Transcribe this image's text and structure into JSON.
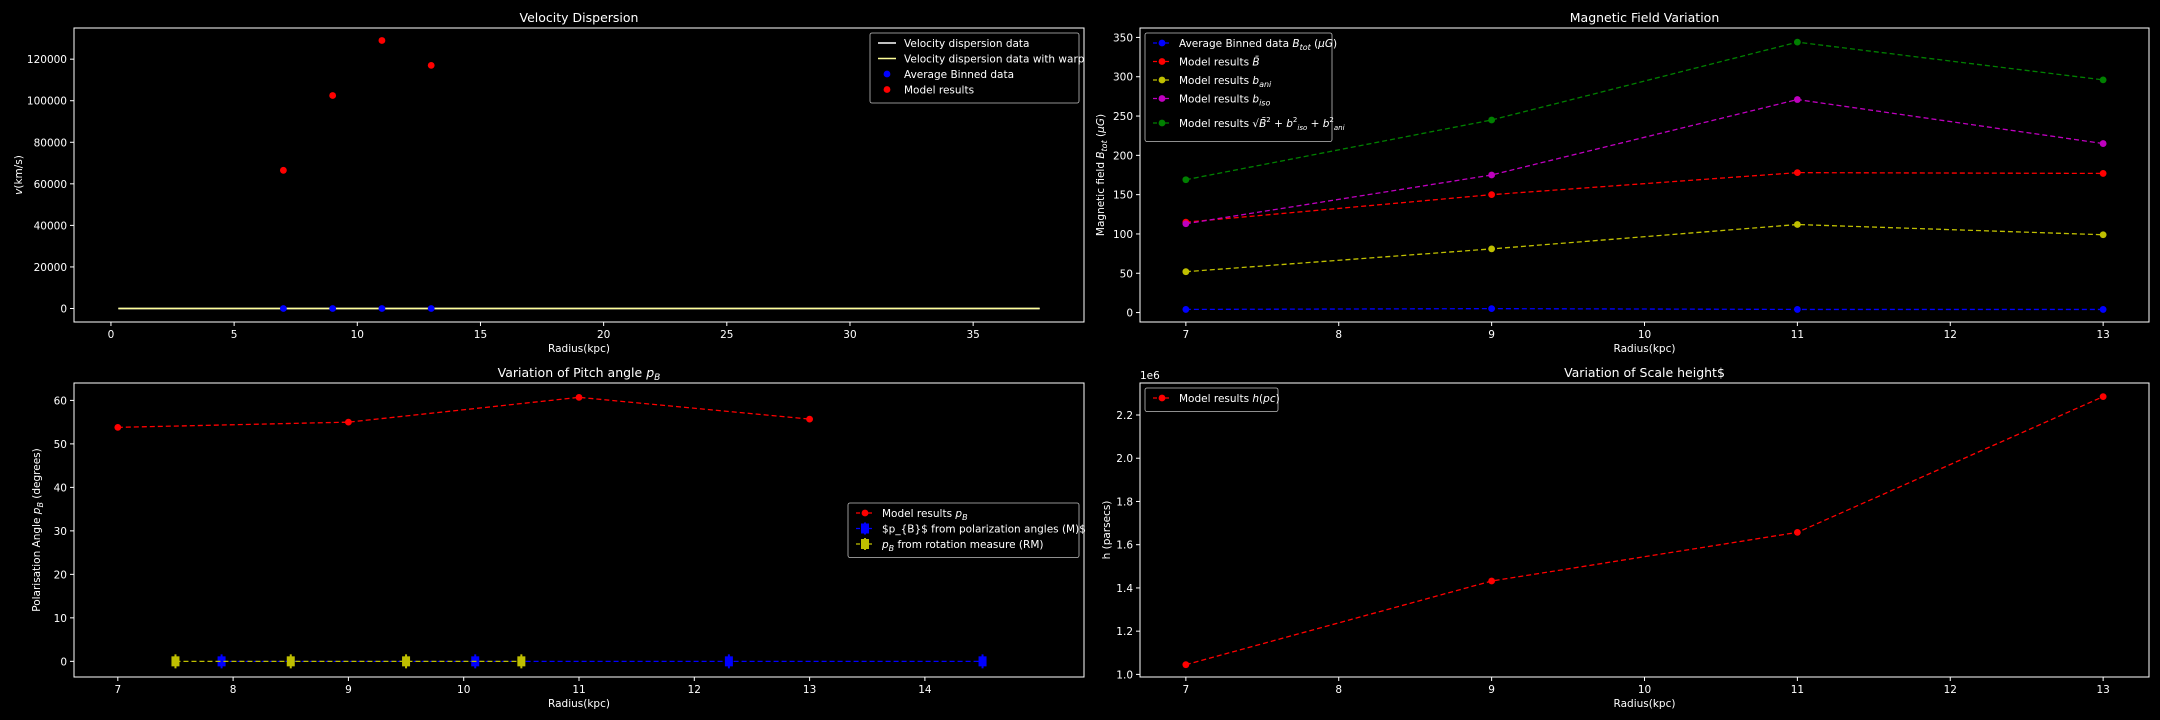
{
  "figure": {
    "background": "#000000",
    "foreground": "#ffffff"
  },
  "chart_data": [
    {
      "id": "vel",
      "type": "scatter",
      "title": "Velocity Dispersion",
      "xlabel": "Radius(kpc)",
      "ylabel": "v(km/s)",
      "xlim": [
        -1.5,
        39.5
      ],
      "ylim": [
        -6500,
        135000
      ],
      "xticks": [
        0,
        5,
        10,
        15,
        20,
        25,
        30,
        35
      ],
      "xtick_labels": [
        "0",
        "5",
        "10",
        "15",
        "20",
        "25",
        "30",
        "35"
      ],
      "yticks": [
        0,
        20000,
        40000,
        60000,
        80000,
        100000,
        120000
      ],
      "ytick_labels": [
        "0",
        "20000",
        "40000",
        "60000",
        "80000",
        "100000",
        "120000"
      ],
      "legend_loc": "upper right",
      "series": [
        {
          "name": "Velocity dispersion data",
          "kind": "line",
          "color": "#ffffff",
          "x": [
            0.3,
            37.7
          ],
          "y": [
            0,
            0
          ]
        },
        {
          "name": "Velocity dispersion data with warp",
          "kind": "line",
          "color": "#ffff99",
          "x": [
            0.3,
            37.7
          ],
          "y": [
            0,
            0
          ]
        },
        {
          "name": "Average Binned data",
          "kind": "scatter",
          "color": "#0000ff",
          "x": [
            7,
            9,
            11,
            13
          ],
          "y": [
            0,
            0,
            0,
            0
          ]
        },
        {
          "name": "Model results",
          "kind": "scatter",
          "color": "#ff0000",
          "x": [
            7,
            9,
            11,
            13
          ],
          "y": [
            66500,
            102500,
            129000,
            117000
          ]
        }
      ]
    },
    {
      "id": "mag",
      "type": "line",
      "title": "Magnetic Field Variation",
      "xlabel": "Radius(kpc)",
      "ylabel": "Magnetic field B_tot (μG)",
      "xlim": [
        6.7,
        13.3
      ],
      "ylim": [
        -12,
        362
      ],
      "xticks": [
        7,
        8,
        9,
        10,
        11,
        12,
        13
      ],
      "xtick_labels": [
        "7",
        "8",
        "9",
        "10",
        "11",
        "12",
        "13"
      ],
      "yticks": [
        0,
        50,
        100,
        150,
        200,
        250,
        300,
        350
      ],
      "ytick_labels": [
        "0",
        "50",
        "100",
        "150",
        "200",
        "250",
        "300",
        "350"
      ],
      "legend_loc": "upper left",
      "series": [
        {
          "name": "Average Binned data B_tot (μG)",
          "kind": "dashline",
          "color": "#0000ff",
          "x": [
            7,
            9,
            11,
            13
          ],
          "y": [
            4,
            5,
            4,
            4
          ]
        },
        {
          "name": "Model results B̄",
          "kind": "dashline",
          "color": "#ff0000",
          "x": [
            7,
            9,
            11,
            13
          ],
          "y": [
            115,
            150,
            178,
            177
          ]
        },
        {
          "name": "Model results b_ani",
          "kind": "dashline",
          "color": "#bfbf00",
          "x": [
            7,
            9,
            11,
            13
          ],
          "y": [
            52,
            81,
            112,
            99
          ]
        },
        {
          "name": "Model results b_iso",
          "kind": "dashline",
          "color": "#bf00bf",
          "x": [
            7,
            9,
            11,
            13
          ],
          "y": [
            113,
            175,
            271,
            215
          ]
        },
        {
          "name": "Model results √(B̄² + b²iso + b²ani)",
          "kind": "dashline",
          "color": "#008000",
          "x": [
            7,
            9,
            11,
            13
          ],
          "y": [
            169,
            245,
            344,
            296
          ]
        }
      ]
    },
    {
      "id": "pitch",
      "type": "line",
      "title": "Variation of Pitch angle p_B",
      "xlabel": "Radius(kpc)",
      "ylabel": "Polarisation Angle p_B (degrees)",
      "xlim": [
        6.62,
        15.38
      ],
      "ylim": [
        -3.6,
        64.0
      ],
      "xticks": [
        7,
        8,
        9,
        10,
        11,
        12,
        13,
        14
      ],
      "xtick_labels": [
        "7",
        "8",
        "9",
        "10",
        "11",
        "12",
        "13",
        "14"
      ],
      "yticks": [
        0,
        10,
        20,
        30,
        40,
        50,
        60
      ],
      "ytick_labels": [
        "0",
        "10",
        "20",
        "30",
        "40",
        "50",
        "60"
      ],
      "legend_loc": "center right",
      "series": [
        {
          "name": "Model results p_B",
          "kind": "dashline",
          "color": "#ff0000",
          "x": [
            7,
            9,
            11,
            13
          ],
          "y": [
            53.8,
            55.0,
            60.7,
            55.7
          ]
        },
        {
          "name": "$p_{B}$ from polarization angles (M)$",
          "kind": "errorbar",
          "color": "#0000ff",
          "x": [
            7.9,
            10.1,
            12.3,
            14.5
          ],
          "y": [
            0,
            0,
            0,
            0
          ]
        },
        {
          "name": "p_B from rotation measure (RM)",
          "kind": "errorbar",
          "color": "#bfbf00",
          "x": [
            7.5,
            8.5,
            9.5,
            10.5
          ],
          "y": [
            0,
            0,
            0,
            0
          ]
        }
      ]
    },
    {
      "id": "scale",
      "type": "line",
      "title": "Variation of Scale height$",
      "xlabel": "Radius(kpc)",
      "ylabel": "h (parsecs)",
      "offset_text": "1e6",
      "xlim": [
        6.7,
        13.3
      ],
      "ylim": [
        0.988,
        2.348
      ],
      "xticks": [
        7,
        8,
        9,
        10,
        11,
        12,
        13
      ],
      "xtick_labels": [
        "7",
        "8",
        "9",
        "10",
        "11",
        "12",
        "13"
      ],
      "yticks": [
        1.0,
        1.2,
        1.4,
        1.6,
        1.8,
        2.0,
        2.2
      ],
      "ytick_labels": [
        "1.0",
        "1.2",
        "1.4",
        "1.6",
        "1.8",
        "2.0",
        "2.2"
      ],
      "legend_loc": "upper left",
      "series": [
        {
          "name": "Model results h(pc)",
          "kind": "dashline",
          "color": "#ff0000",
          "x": [
            7,
            9,
            11,
            13
          ],
          "y": [
            1.045,
            1.432,
            1.657,
            2.285
          ]
        }
      ]
    }
  ]
}
